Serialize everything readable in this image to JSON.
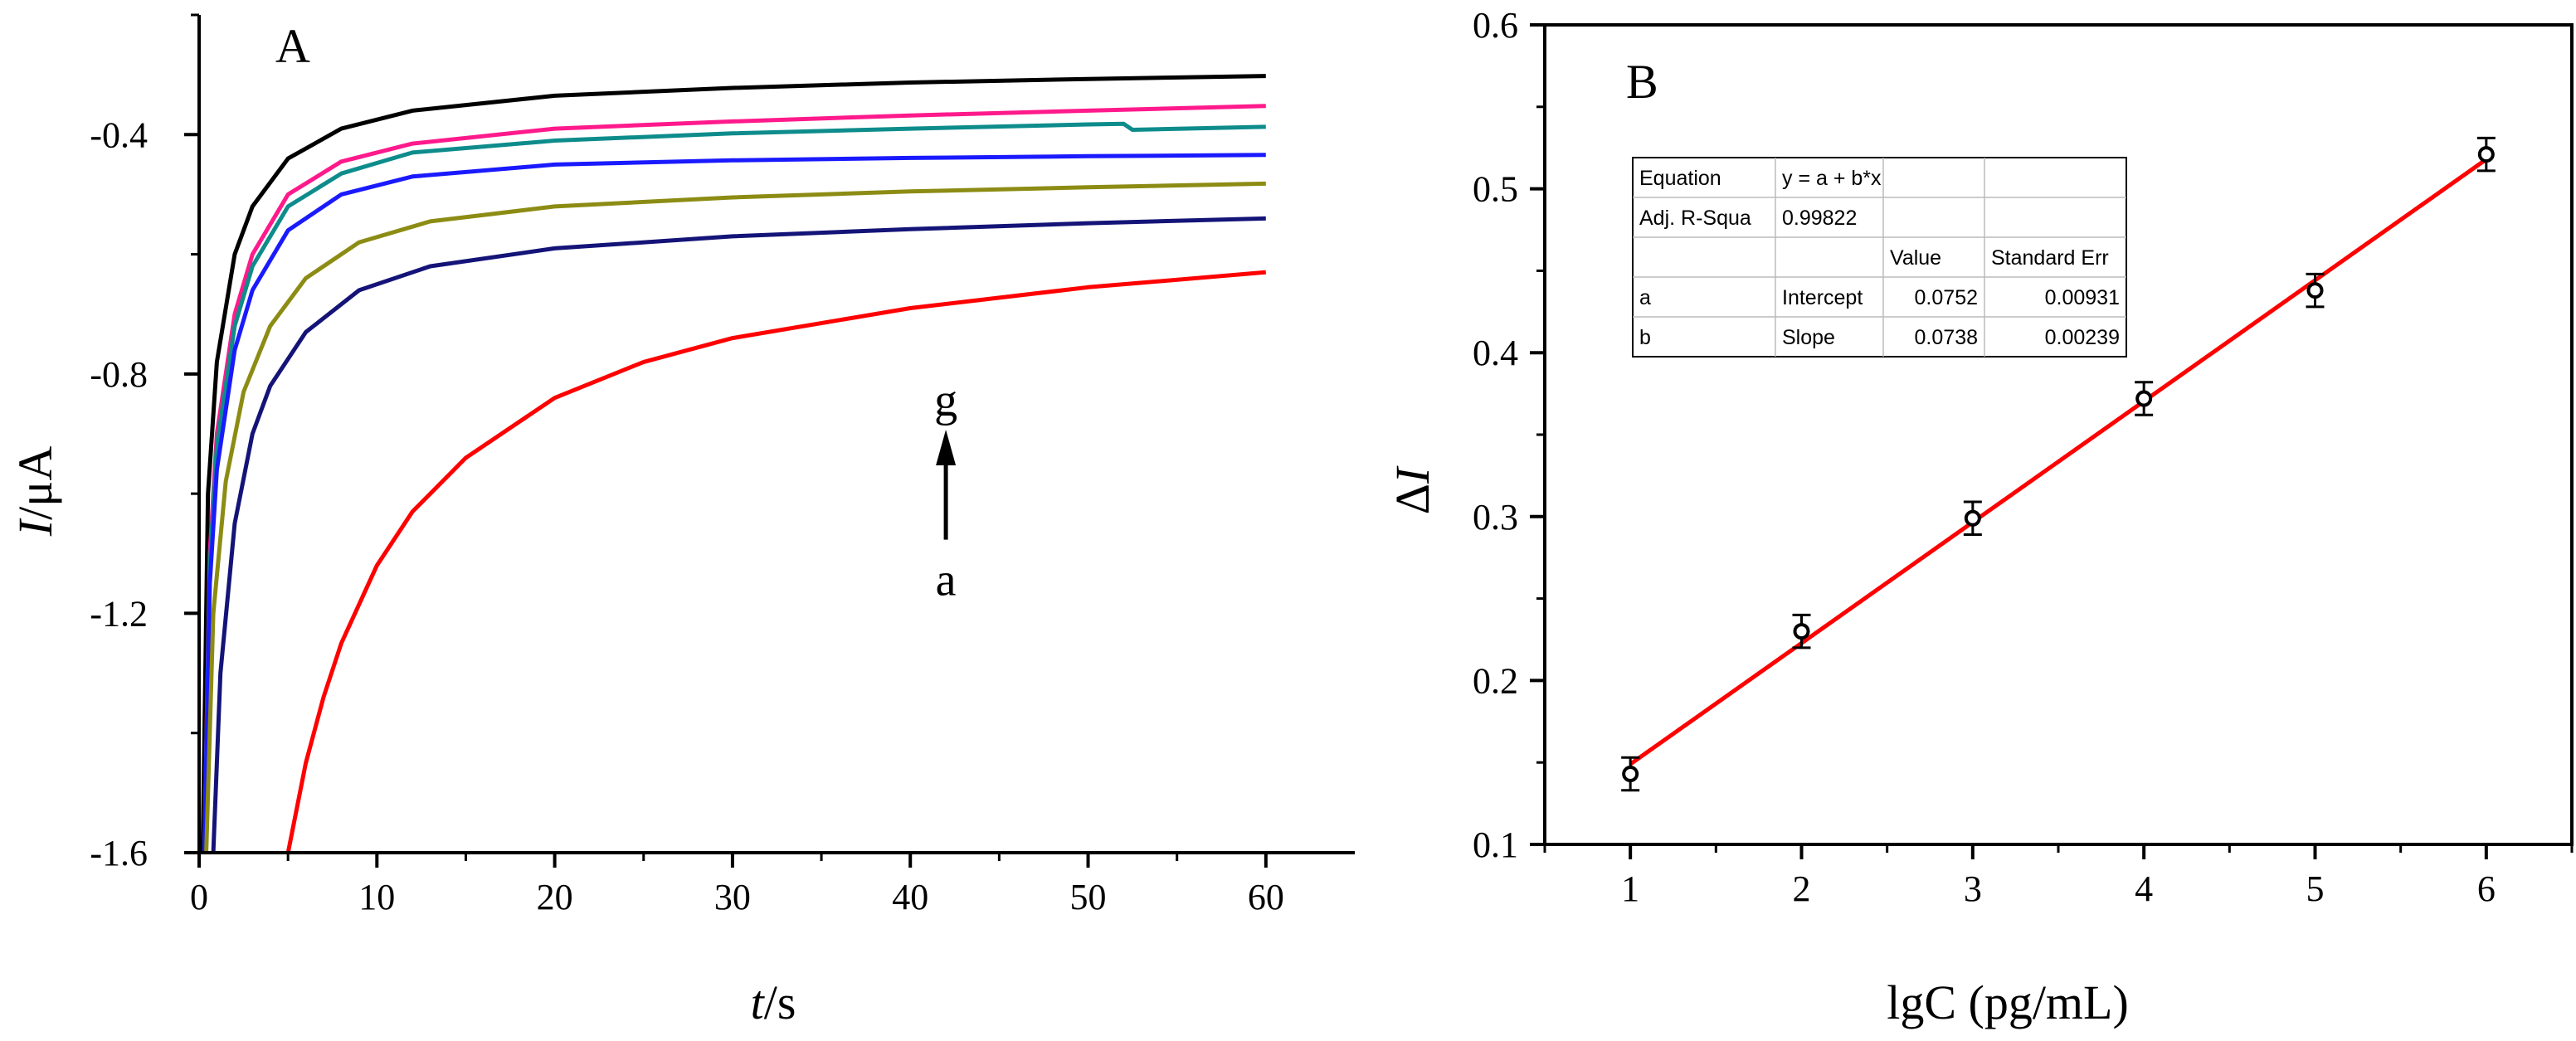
{
  "chart_data": [
    {
      "panel": "A",
      "type": "line",
      "xlabel": "t/s",
      "xlabel_italic": "t",
      "xlabel_rest": "/s",
      "ylabel": "I/μA",
      "ylabel_italic": "I",
      "ylabel_rest": "/μA",
      "xlim": [
        0,
        65
      ],
      "ylim": [
        -1.6,
        -0.2
      ],
      "xticks": [
        0,
        10,
        20,
        30,
        40,
        50,
        60
      ],
      "yticks": [
        -1.6,
        -1.2,
        -0.8,
        -0.4
      ],
      "ytick_labels": [
        "-1.6",
        "-1.2",
        "-0.8",
        "-0.4"
      ],
      "annotation": {
        "top": "g",
        "bottom": "a",
        "x": 42,
        "y_top": -0.9,
        "y_bottom": -1.07
      },
      "series": [
        {
          "name": "black",
          "color": "#000000",
          "x": [
            0.2,
            0.5,
            1,
            2,
            3,
            5,
            8,
            12,
            20,
            30,
            40,
            50,
            60
          ],
          "y": [
            -1.6,
            -1.0,
            -0.78,
            -0.6,
            -0.52,
            -0.44,
            -0.39,
            -0.36,
            -0.335,
            -0.322,
            -0.313,
            -0.307,
            -0.302
          ]
        },
        {
          "name": "magenta",
          "color": "#ff1a8c",
          "x": [
            0.3,
            0.6,
            1,
            2,
            3,
            5,
            8,
            12,
            20,
            30,
            40,
            50,
            60
          ],
          "y": [
            -1.6,
            -1.1,
            -0.9,
            -0.7,
            -0.6,
            -0.5,
            -0.445,
            -0.415,
            -0.39,
            -0.378,
            -0.368,
            -0.36,
            -0.352
          ]
        },
        {
          "name": "teal",
          "color": "#0e8c8c",
          "x": [
            0.3,
            0.6,
            1,
            2,
            3,
            5,
            8,
            12,
            20,
            30,
            40,
            50,
            52,
            52.5,
            60
          ],
          "y": [
            -1.6,
            -1.12,
            -0.92,
            -0.72,
            -0.62,
            -0.52,
            -0.465,
            -0.43,
            -0.41,
            -0.398,
            -0.39,
            -0.383,
            -0.382,
            -0.392,
            -0.387
          ]
        },
        {
          "name": "blue",
          "color": "#1a1aff",
          "x": [
            0.3,
            0.6,
            1,
            2,
            3,
            5,
            8,
            12,
            20,
            30,
            40,
            50,
            60
          ],
          "y": [
            -1.6,
            -1.15,
            -0.96,
            -0.76,
            -0.66,
            -0.56,
            -0.5,
            -0.47,
            -0.45,
            -0.443,
            -0.439,
            -0.436,
            -0.434
          ]
        },
        {
          "name": "olive",
          "color": "#8c8c14",
          "x": [
            0.4,
            0.8,
            1.5,
            2.5,
            4,
            6,
            9,
            13,
            20,
            30,
            40,
            50,
            60
          ],
          "y": [
            -1.6,
            -1.2,
            -0.98,
            -0.83,
            -0.72,
            -0.64,
            -0.58,
            -0.545,
            -0.52,
            -0.505,
            -0.495,
            -0.488,
            -0.482
          ]
        },
        {
          "name": "navy",
          "color": "#141478",
          "x": [
            0.8,
            1.2,
            2,
            3,
            4,
            6,
            9,
            13,
            20,
            30,
            40,
            50,
            60
          ],
          "y": [
            -1.6,
            -1.3,
            -1.05,
            -0.9,
            -0.82,
            -0.73,
            -0.66,
            -0.62,
            -0.59,
            -0.57,
            -0.558,
            -0.548,
            -0.54
          ]
        },
        {
          "name": "red",
          "color": "#ff0000",
          "x": [
            5,
            6,
            7,
            8,
            10,
            12,
            15,
            20,
            25,
            30,
            40,
            50,
            60
          ],
          "y": [
            -1.6,
            -1.45,
            -1.34,
            -1.25,
            -1.12,
            -1.03,
            -0.94,
            -0.84,
            -0.78,
            -0.74,
            -0.69,
            -0.655,
            -0.63
          ]
        }
      ]
    },
    {
      "panel": "B",
      "type": "scatter",
      "xlabel": "lgC (pg/mL)",
      "ylabel": "ΔI",
      "ylabel_delta": "Δ",
      "ylabel_italic": "I",
      "xlim": [
        0.5,
        6.5
      ],
      "ylim": [
        0.1,
        0.6
      ],
      "xticks": [
        1,
        2,
        3,
        4,
        5,
        6
      ],
      "yticks": [
        0.1,
        0.2,
        0.3,
        0.4,
        0.5,
        0.6
      ],
      "ytick_labels": [
        "0.1",
        "0.2",
        "0.3",
        "0.4",
        "0.5",
        "0.6"
      ],
      "points": {
        "x": [
          1,
          2,
          3,
          4,
          5,
          6
        ],
        "y": [
          0.143,
          0.23,
          0.299,
          0.372,
          0.438,
          0.521
        ],
        "error": [
          0.01,
          0.01,
          0.01,
          0.01,
          0.01,
          0.01
        ]
      },
      "fit": {
        "intercept": 0.0752,
        "slope": 0.0738,
        "x_range": [
          1,
          6
        ],
        "color": "#ff0000"
      },
      "fit_table": [
        [
          "Equation",
          "y = a + b*x",
          "",
          ""
        ],
        [
          "Adj. R-Squa",
          "0.99822",
          "",
          ""
        ],
        [
          "",
          "",
          "Value",
          "Standard Err"
        ],
        [
          "a",
          "Intercept",
          "0.0752",
          "0.00931"
        ],
        [
          "b",
          "Slope",
          "0.0738",
          "0.00239"
        ]
      ]
    }
  ]
}
